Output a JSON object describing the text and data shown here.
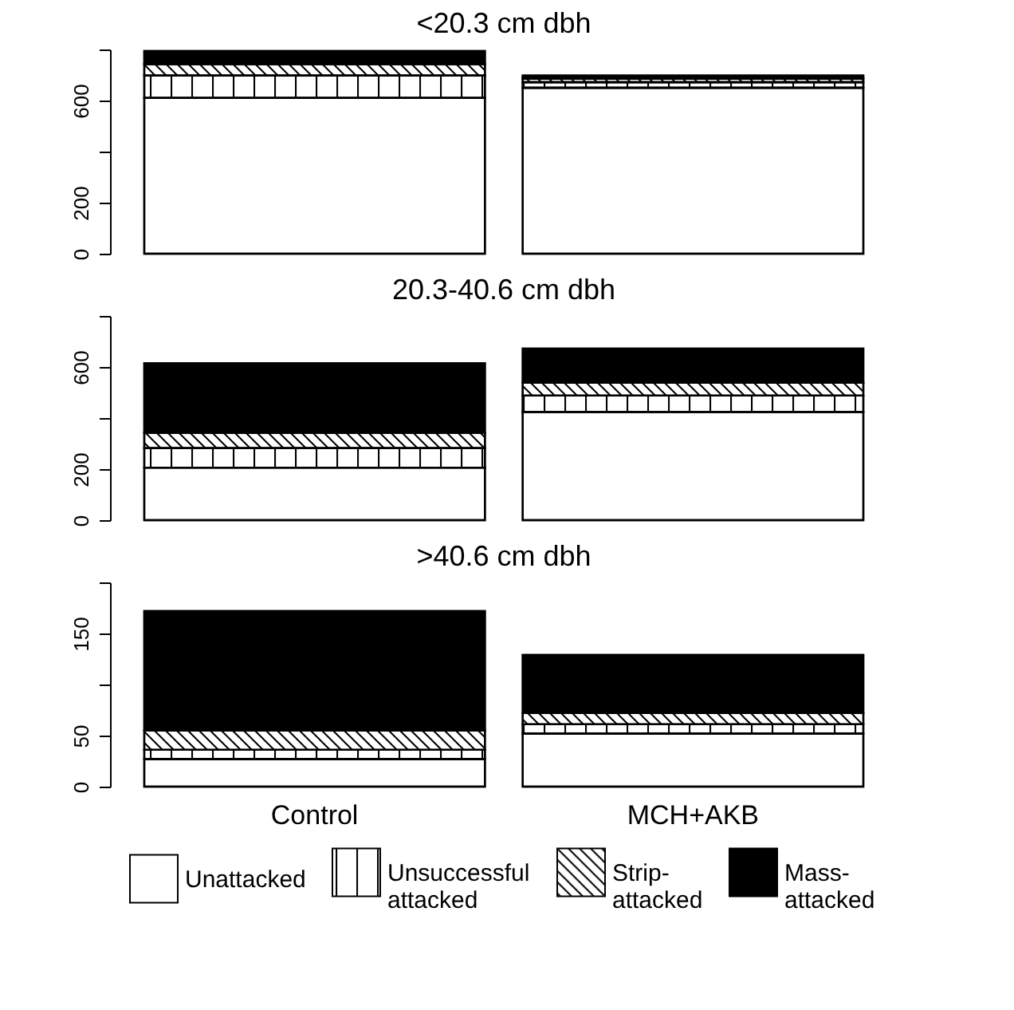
{
  "chart_data": [
    {
      "type": "bar",
      "stacked": true,
      "title": "<20.3 cm dbh",
      "categories": [
        null,
        null
      ],
      "tick_labels": "y",
      "series": [
        {
          "color": "#ffffff",
          "values": [
            610,
            650
          ]
        },
        {
          "color": "#ffffff",
          "values": [
            88,
            22
          ]
        },
        {
          "color": "#ffffff",
          "values": [
            45,
            14
          ]
        },
        {
          "color": "#000000",
          "values": [
            51,
            12
          ]
        }
      ],
      "ylim": [
        0,
        800
      ],
      "yticks": [
        0,
        200,
        {
          "value": 400,
          "label": null
        },
        600,
        {
          "value": 800,
          "label": null
        }
      ],
      "grid": false
    },
    {
      "type": "bar",
      "stacked": true,
      "title": "20.3-40.6 cm dbh",
      "categories": [
        null,
        null
      ],
      "tick_labels": "y",
      "series": [
        {
          "color": "#ffffff",
          "values": [
            206,
            424
          ]
        },
        {
          "color": "#ffffff",
          "values": [
            76,
            64
          ]
        },
        {
          "color": "#ffffff",
          "values": [
            61,
            51
          ]
        },
        {
          "color": "#000000",
          "values": [
            272,
            133
          ]
        }
      ],
      "ylim": [
        0,
        800
      ],
      "yticks": [
        0,
        200,
        {
          "value": 400,
          "label": null
        },
        600,
        {
          "value": 800,
          "label": null
        }
      ],
      "grid": false
    },
    {
      "type": "bar",
      "stacked": true,
      "title": ">40.6 cm dbh",
      "categories": [
        "Control",
        "MCH+AKB"
      ],
      "series": [
        {
          "name": "Unattacked",
          "color": "#ffffff",
          "values": [
            27,
            52
          ]
        },
        {
          "name": "Unsuccessful attacked",
          "color": "#ffffff",
          "values": [
            9,
            9
          ]
        },
        {
          "name": "Strip-attacked",
          "color": "#ffffff",
          "values": [
            19,
            11
          ]
        },
        {
          "name": "Mass-attacked",
          "color": "#000000",
          "values": [
            117,
            57
          ]
        }
      ],
      "ylim": [
        0,
        200
      ],
      "yticks": [
        0,
        50,
        {
          "value": 100,
          "label": null
        },
        150,
        {
          "value": 200,
          "label": null
        }
      ],
      "grid": false,
      "legend": "bottom"
    }
  ]
}
